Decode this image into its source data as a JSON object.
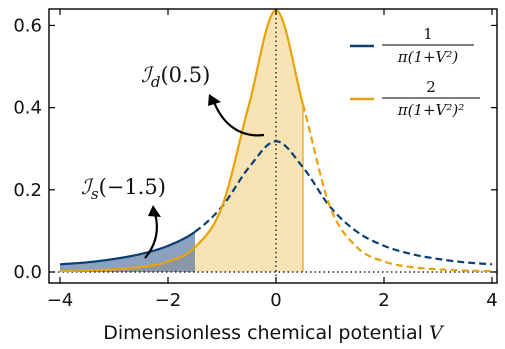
{
  "chart_data": {
    "type": "line",
    "xlabel": "Dimensionless chemical potential V",
    "xlim": [
      -4,
      4
    ],
    "ylim": [
      0,
      0.64
    ],
    "xticks": [
      -4,
      -2,
      0,
      2,
      4
    ],
    "yticks": [
      0.0,
      0.2,
      0.4,
      0.6
    ],
    "xtick_labels": [
      "−4",
      "−2",
      "0",
      "2",
      "4"
    ],
    "ytick_labels": [
      "0.0",
      "0.2",
      "0.4",
      "0.6"
    ],
    "grid": false,
    "legend_position": "top-right",
    "series": [
      {
        "name": "1/(π(1+V²))",
        "color": "#0b3f73",
        "x": [
          -4,
          -3.5,
          -3,
          -2.5,
          -2,
          -1.5,
          -1,
          -0.5,
          0,
          0.5,
          1,
          1.5,
          2,
          2.5,
          3,
          3.5,
          4
        ],
        "values": [
          0.0187,
          0.0235,
          0.0318,
          0.0439,
          0.0637,
          0.0979,
          0.1592,
          0.2546,
          0.3183,
          0.2546,
          0.1592,
          0.0979,
          0.0637,
          0.0439,
          0.0318,
          0.0235,
          0.0187
        ],
        "solid_range": [
          -4,
          -1.5
        ]
      },
      {
        "name": "2/(π(1+V²)²)",
        "color": "#e8a20a",
        "x": [
          -4,
          -3.5,
          -3,
          -2.5,
          -2,
          -1.5,
          -1,
          -0.5,
          0,
          0.5,
          1,
          1.5,
          2,
          2.5,
          3,
          3.5,
          4
        ],
        "values": [
          0.0022,
          0.0035,
          0.0064,
          0.0121,
          0.0255,
          0.0603,
          0.1592,
          0.4074,
          0.6366,
          0.4074,
          0.1592,
          0.0603,
          0.0255,
          0.0121,
          0.0064,
          0.0035,
          0.0022
        ],
        "solid_range": [
          -4,
          0.5
        ]
      }
    ],
    "shaded_regions": [
      {
        "series": 0,
        "from": -4,
        "to": -1.5
      },
      {
        "series": 1,
        "from": -4,
        "to": 0.5
      }
    ],
    "vertical_reference_line": 0,
    "horizontal_reference_line": 0,
    "annotations": {
      "id": {
        "main": "ℐ",
        "sub": "d",
        "arg": "(0.5)"
      },
      "is": {
        "main": "ℐ",
        "sub": "s",
        "arg": "(−1.5)"
      }
    },
    "legend": {
      "entry1": {
        "num": "1",
        "den": "π(1+V²)"
      },
      "entry2": {
        "num": "2",
        "den": "π(1+V²)²"
      }
    }
  }
}
